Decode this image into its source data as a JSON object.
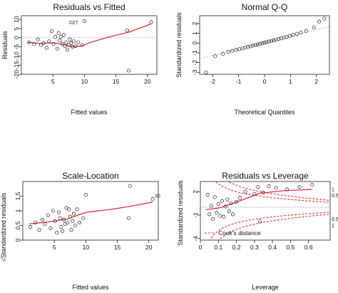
{
  "chart_data": [
    {
      "type": "scatter",
      "title": "Residuals vs Fitted",
      "xlabel": "Fitted values",
      "ylabel": "Residuals",
      "xlim": [
        0,
        21.5
      ],
      "ylim": [
        -20,
        12
      ],
      "xticks": [
        5,
        10,
        15,
        20
      ],
      "yticks": [
        -20,
        -15,
        -10,
        -5,
        0,
        5,
        10
      ],
      "reference_line": {
        "y": 0,
        "style": "dotted"
      },
      "points": [
        [
          1.2,
          -2.5
        ],
        [
          2.0,
          -3.5
        ],
        [
          2.6,
          -1.0
        ],
        [
          3.1,
          -4.0
        ],
        [
          3.5,
          -3.0
        ],
        [
          4.0,
          -5.5
        ],
        [
          4.4,
          -2.0
        ],
        [
          4.8,
          3.5
        ],
        [
          5.1,
          -3.5
        ],
        [
          5.4,
          0.5
        ],
        [
          5.7,
          -6.0
        ],
        [
          5.9,
          2.5
        ],
        [
          6.1,
          -1.5
        ],
        [
          6.3,
          0.5
        ],
        [
          6.5,
          -3.5
        ],
        [
          6.7,
          1.5
        ],
        [
          6.9,
          -4.5
        ],
        [
          7.1,
          -2.5
        ],
        [
          7.3,
          -6.5
        ],
        [
          7.5,
          -4.0
        ],
        [
          7.7,
          -1.0
        ],
        [
          7.9,
          -3.0
        ],
        [
          8.1,
          -5.0
        ],
        [
          8.3,
          -2.0
        ],
        [
          8.6,
          -4.5
        ],
        [
          9.0,
          -2.5
        ],
        [
          9.6,
          -4.0
        ],
        [
          10.0,
          9.0
        ],
        [
          16.8,
          4.0
        ],
        [
          17.0,
          -18.0
        ],
        [
          20.6,
          8.5
        ]
      ],
      "smoother": [
        [
          1,
          -2.5
        ],
        [
          3,
          -3.2
        ],
        [
          5,
          -2.8
        ],
        [
          6.5,
          -3.5
        ],
        [
          8,
          -5.0
        ],
        [
          9.5,
          -4.5
        ],
        [
          11,
          -2.5
        ],
        [
          14,
          0.5
        ],
        [
          17,
          3.0
        ],
        [
          20.6,
          7.5
        ]
      ],
      "point_labels": [
        {
          "x": 7.2,
          "y": 6.5,
          "text": "©27"
        }
      ]
    },
    {
      "type": "scatter",
      "title": "Normal Q-Q",
      "xlabel": "Theoretical Quantiles",
      "ylabel": "Standardized residuals",
      "xlim": [
        -2.5,
        2.5
      ],
      "ylim": [
        -3.2,
        2.8
      ],
      "xticks": [
        -2,
        -1,
        0,
        1,
        2
      ],
      "yticks": [
        -3,
        -2,
        -1,
        0,
        1,
        2
      ],
      "reference_line": {
        "from": [
          -2.5,
          -1.6
        ],
        "to": [
          2.5,
          1.7
        ],
        "style": "dotted"
      },
      "points": [
        [
          -2.25,
          -3.0
        ],
        [
          -1.9,
          -1.35
        ],
        [
          -1.6,
          -1.1
        ],
        [
          -1.4,
          -0.9
        ],
        [
          -1.25,
          -0.8
        ],
        [
          -1.1,
          -0.7
        ],
        [
          -0.97,
          -0.62
        ],
        [
          -0.85,
          -0.55
        ],
        [
          -0.74,
          -0.47
        ],
        [
          -0.64,
          -0.4
        ],
        [
          -0.54,
          -0.33
        ],
        [
          -0.44,
          -0.26
        ],
        [
          -0.35,
          -0.2
        ],
        [
          -0.26,
          -0.14
        ],
        [
          -0.17,
          -0.08
        ],
        [
          -0.08,
          -0.02
        ],
        [
          0.0,
          0.04
        ],
        [
          0.08,
          0.1
        ],
        [
          0.17,
          0.16
        ],
        [
          0.26,
          0.22
        ],
        [
          0.35,
          0.28
        ],
        [
          0.44,
          0.34
        ],
        [
          0.54,
          0.41
        ],
        [
          0.64,
          0.48
        ],
        [
          0.74,
          0.56
        ],
        [
          0.85,
          0.64
        ],
        [
          0.97,
          0.73
        ],
        [
          1.1,
          0.83
        ],
        [
          1.25,
          0.95
        ],
        [
          1.4,
          1.08
        ],
        [
          1.6,
          1.25
        ],
        [
          1.9,
          1.6
        ],
        [
          2.1,
          2.2
        ],
        [
          2.3,
          2.5
        ]
      ]
    },
    {
      "type": "scatter",
      "title": "Scale-Location",
      "xlabel": "Fitted values",
      "ylabel": "√Standardized residuals",
      "xlim": [
        0,
        21.5
      ],
      "ylim": [
        0,
        2.0
      ],
      "xticks": [
        5,
        10,
        15,
        20
      ],
      "yticks": [
        0.0,
        0.5,
        1.0,
        1.5
      ],
      "points": [
        [
          1.2,
          0.45
        ],
        [
          2.0,
          0.6
        ],
        [
          2.6,
          0.35
        ],
        [
          3.1,
          0.7
        ],
        [
          3.5,
          0.55
        ],
        [
          4.0,
          0.85
        ],
        [
          4.4,
          0.4
        ],
        [
          4.8,
          1.0
        ],
        [
          5.1,
          0.65
        ],
        [
          5.4,
          0.25
        ],
        [
          5.7,
          0.95
        ],
        [
          5.9,
          0.75
        ],
        [
          6.1,
          0.45
        ],
        [
          6.3,
          0.3
        ],
        [
          6.5,
          0.7
        ],
        [
          6.7,
          0.55
        ],
        [
          6.9,
          1.1
        ],
        [
          7.1,
          0.6
        ],
        [
          7.3,
          1.05
        ],
        [
          7.5,
          0.8
        ],
        [
          7.7,
          0.35
        ],
        [
          7.9,
          0.65
        ],
        [
          8.1,
          0.9
        ],
        [
          8.3,
          0.5
        ],
        [
          8.6,
          1.05
        ],
        [
          9.0,
          0.6
        ],
        [
          9.6,
          0.75
        ],
        [
          10.0,
          1.55
        ],
        [
          16.8,
          0.75
        ],
        [
          17.0,
          1.85
        ],
        [
          20.6,
          1.4
        ]
      ],
      "smoother": [
        [
          1,
          0.55
        ],
        [
          4,
          0.62
        ],
        [
          7,
          0.72
        ],
        [
          10,
          0.95
        ],
        [
          14,
          1.05
        ],
        [
          17,
          1.15
        ],
        [
          20.6,
          1.3
        ]
      ],
      "point_labels": [
        {
          "x": 20.6,
          "y": 1.4,
          "text": "30"
        }
      ]
    },
    {
      "type": "scatter",
      "title": "Residuals vs Leverage",
      "xlabel": "Leverage",
      "ylabel": "Standardized residuals",
      "xlim": [
        0,
        0.72
      ],
      "ylim": [
        -4.2,
        3.3
      ],
      "xticks": [
        0.0,
        0.1,
        0.2,
        0.3,
        0.4,
        0.5,
        0.6
      ],
      "yticks": [
        -4,
        -1,
        2
      ],
      "reference_line": {
        "y": 0,
        "style": "dotted"
      },
      "points": [
        [
          0.04,
          1.6
        ],
        [
          0.05,
          -0.9
        ],
        [
          0.06,
          0.2
        ],
        [
          0.07,
          -1.5
        ],
        [
          0.08,
          1.3
        ],
        [
          0.09,
          -0.7
        ],
        [
          0.1,
          0.4
        ],
        [
          0.11,
          -1.1
        ],
        [
          0.12,
          0.8
        ],
        [
          0.13,
          -1.2
        ],
        [
          0.14,
          0.1
        ],
        [
          0.15,
          1.0
        ],
        [
          0.16,
          -0.5
        ],
        [
          0.17,
          0.5
        ],
        [
          0.18,
          -0.9
        ],
        [
          0.2,
          0.7
        ],
        [
          0.22,
          1.2
        ],
        [
          0.25,
          2.0
        ],
        [
          0.3,
          1.7
        ],
        [
          0.32,
          2.6
        ],
        [
          0.33,
          -1.8
        ],
        [
          0.35,
          1.9
        ],
        [
          0.38,
          2.7
        ],
        [
          0.42,
          2.5
        ],
        [
          0.48,
          2.3
        ],
        [
          0.55,
          2.6
        ],
        [
          0.62,
          2.9
        ]
      ],
      "smoother": [
        [
          0.03,
          -0.3
        ],
        [
          0.1,
          -0.1
        ],
        [
          0.18,
          0.5
        ],
        [
          0.25,
          1.1
        ],
        [
          0.33,
          1.8
        ],
        [
          0.45,
          2.1
        ],
        [
          0.62,
          2.3
        ]
      ],
      "cooks_distance": {
        "label": "Cook's distance",
        "levels": [
          0.5,
          1
        ]
      },
      "contour_labels": [
        "1",
        "0.5",
        "0.5",
        "1"
      ]
    }
  ]
}
